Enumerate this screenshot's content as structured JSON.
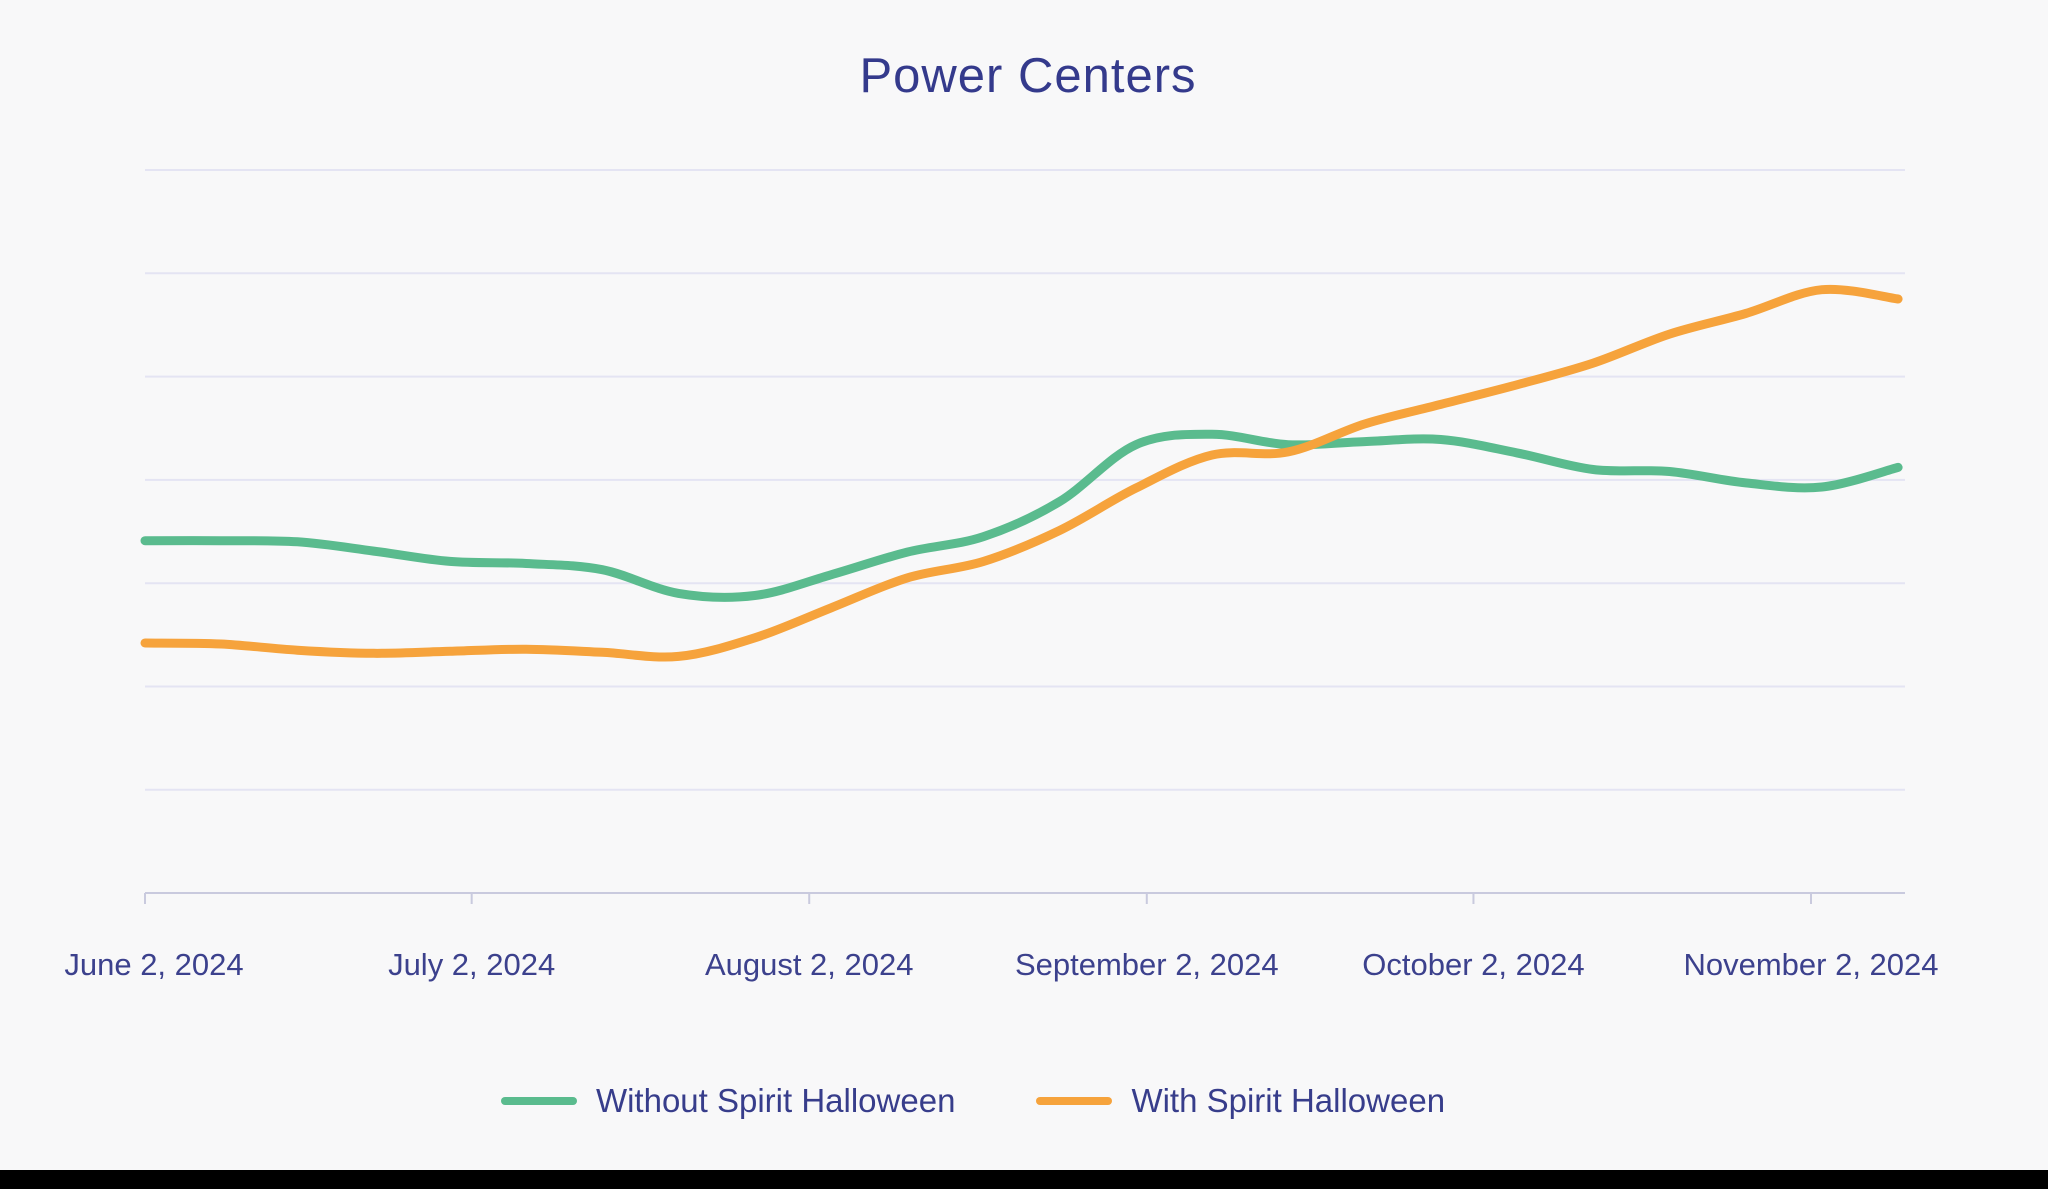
{
  "title": "Power Centers",
  "colors": {
    "background": "#f8f8f9",
    "title_text": "#343a8c",
    "axis_label_text": "#3c418d",
    "gridline": "#e4e4f3",
    "axis_line": "#c9cade",
    "series_without": "#5abb8e",
    "series_with": "#f6a33c",
    "bottom_bar": "#000000"
  },
  "legend": {
    "items": [
      {
        "label": "Without Spirit Halloween",
        "swatch_color": "#5abb8e"
      },
      {
        "label": "With Spirit Halloween",
        "swatch_color": "#f6a33c"
      }
    ]
  },
  "chart_data": {
    "type": "line",
    "title": "Power Centers",
    "xlabel": "",
    "ylabel": "",
    "y_axis_note": "y axis has no visible tick labels; values below are estimated in gridline units above the bottom axis (0 = bottom axis line, 7 = top gridline), gridlines unlabeled",
    "ylim": [
      0,
      7
    ],
    "grid": "horizontal-only",
    "legend_position": "bottom-center",
    "x_ticks": [
      {
        "date": "2024-06-02",
        "label": "June 2, 2024"
      },
      {
        "date": "2024-07-02",
        "label": "July 2, 2024"
      },
      {
        "date": "2024-08-02",
        "label": "August 2, 2024"
      },
      {
        "date": "2024-09-02",
        "label": "September 2, 2024"
      },
      {
        "date": "2024-10-02",
        "label": "October 2, 2024"
      },
      {
        "date": "2024-11-02",
        "label": "November 2, 2024"
      }
    ],
    "x_dates": [
      "2024-06-02",
      "2024-06-09",
      "2024-06-16",
      "2024-06-23",
      "2024-06-30",
      "2024-07-07",
      "2024-07-14",
      "2024-07-21",
      "2024-07-28",
      "2024-08-04",
      "2024-08-11",
      "2024-08-18",
      "2024-08-25",
      "2024-09-01",
      "2024-09-08",
      "2024-09-15",
      "2024-09-22",
      "2024-09-29",
      "2024-10-06",
      "2024-10-13",
      "2024-10-20",
      "2024-10-27",
      "2024-11-03",
      "2024-11-10"
    ],
    "series": [
      {
        "name": "Without Spirit Halloween",
        "color": "#5abb8e",
        "values": [
          3.41,
          3.41,
          3.4,
          3.31,
          3.21,
          3.19,
          3.13,
          2.9,
          2.88,
          3.08,
          3.3,
          3.45,
          3.79,
          4.34,
          4.44,
          4.34,
          4.37,
          4.39,
          4.26,
          4.1,
          4.08,
          3.97,
          3.93,
          4.12
        ]
      },
      {
        "name": "With Spirit Halloween",
        "color": "#f6a33c",
        "values": [
          2.42,
          2.41,
          2.35,
          2.32,
          2.34,
          2.36,
          2.33,
          2.29,
          2.47,
          2.76,
          3.05,
          3.21,
          3.51,
          3.92,
          4.24,
          4.27,
          4.54,
          4.73,
          4.92,
          5.13,
          5.41,
          5.61,
          5.84,
          5.75
        ]
      }
    ]
  }
}
